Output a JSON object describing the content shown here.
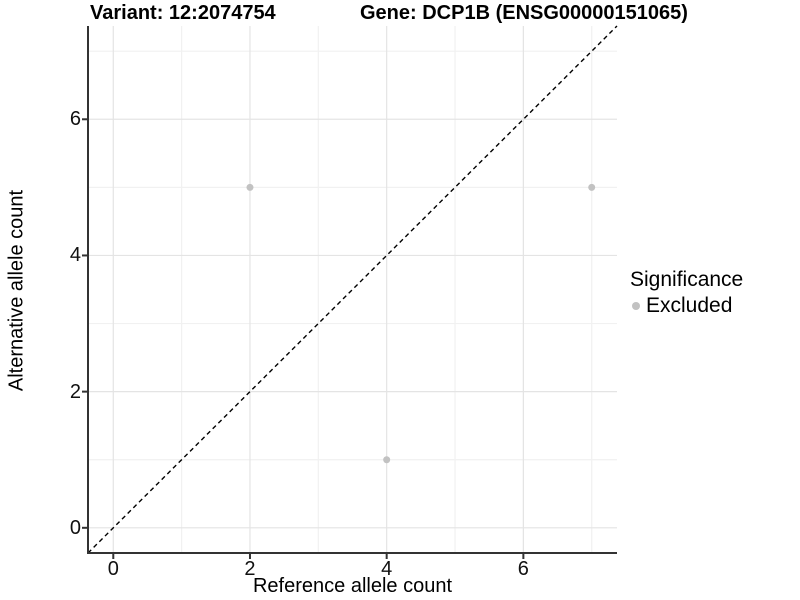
{
  "titles": {
    "variant": "Variant: 12:2074754",
    "gene": "Gene: DCP1B (ENSG00000151065)"
  },
  "axes": {
    "x_label": "Reference allele count",
    "y_label": "Alternative allele count"
  },
  "legend": {
    "title": "Significance",
    "items": [
      {
        "label": "Excluded",
        "color": "#c2c2c2"
      }
    ]
  },
  "colors": {
    "background": "#ffffff",
    "grid_major": "#e4e4e4",
    "grid_minor": "#f1f1f1",
    "axis_line": "#333333",
    "point": "#c2c2c2",
    "reference_line": "#000000",
    "text": "#000000"
  },
  "chart_data": {
    "type": "scatter",
    "title_left": "Variant: 12:2074754",
    "title_right": "Gene: DCP1B (ENSG00000151065)",
    "xlabel": "Reference allele count",
    "ylabel": "Alternative allele count",
    "xlim": [
      -0.37,
      7.37
    ],
    "ylim": [
      -0.37,
      7.37
    ],
    "x_major_ticks": [
      0,
      2,
      4,
      6
    ],
    "x_minor_ticks": [
      1,
      3,
      5,
      7
    ],
    "y_major_ticks": [
      0,
      2,
      4,
      6
    ],
    "y_minor_ticks": [
      1,
      3,
      5,
      7
    ],
    "grid": true,
    "legend_position": "right",
    "series": [
      {
        "name": "Excluded",
        "color": "#c2c2c2",
        "points": [
          [
            2,
            5
          ],
          [
            7,
            5
          ],
          [
            4,
            1
          ]
        ]
      }
    ],
    "reference_line": {
      "type": "identity y=x",
      "style": "dashed",
      "color": "#000000",
      "from": [
        -0.37,
        -0.37
      ],
      "to": [
        7.37,
        7.37
      ]
    }
  }
}
